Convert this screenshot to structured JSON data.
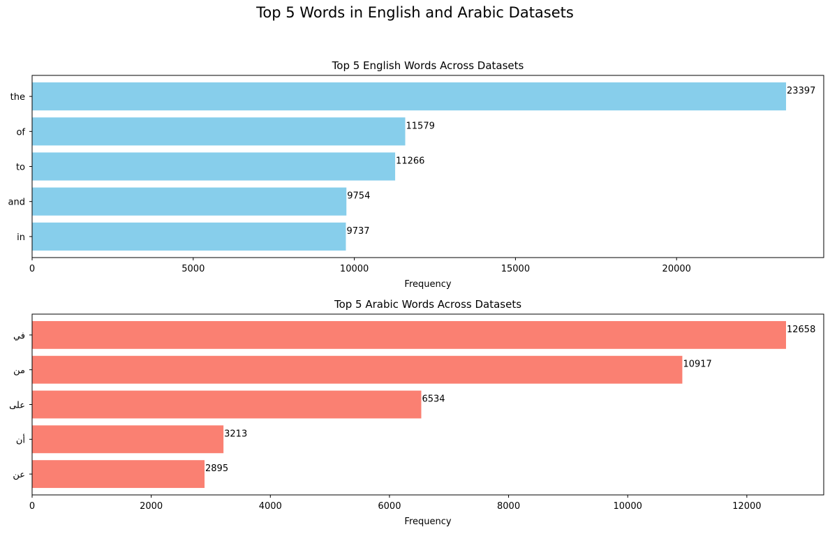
{
  "figure": {
    "suptitle": "Top 5 Words in English and Arabic Datasets"
  },
  "chart_data": [
    {
      "type": "bar",
      "orientation": "horizontal",
      "title": "Top 5 English Words Across Datasets",
      "xlabel": "Frequency",
      "ylabel": "",
      "categories": [
        "the",
        "of",
        "to",
        "and",
        "in"
      ],
      "values": [
        23397,
        11579,
        11266,
        9754,
        9737
      ],
      "data_labels": [
        "23397",
        "11579",
        "11266",
        "9754",
        "9737"
      ],
      "xlim": [
        0,
        24566
      ],
      "xticks": [
        0,
        5000,
        10000,
        15000,
        20000
      ],
      "xtick_labels": [
        "0",
        "5000",
        "10000",
        "15000",
        "20000"
      ],
      "color": "#87CEEB",
      "grid": false,
      "legend": "none"
    },
    {
      "type": "bar",
      "orientation": "horizontal",
      "title": "Top 5 Arabic Words Across Datasets",
      "xlabel": "Frequency",
      "ylabel": "",
      "categories": [
        "في",
        "من",
        "على",
        "أن",
        "عن"
      ],
      "values": [
        12658,
        10917,
        6534,
        3213,
        2895
      ],
      "data_labels": [
        "12658",
        "10917",
        "6534",
        "3213",
        "2895"
      ],
      "xlim": [
        0,
        13291
      ],
      "xticks": [
        0,
        2000,
        4000,
        6000,
        8000,
        10000,
        12000
      ],
      "xtick_labels": [
        "0",
        "2000",
        "4000",
        "6000",
        "8000",
        "10000",
        "12000"
      ],
      "color": "#FA8072",
      "grid": false,
      "legend": "none"
    }
  ]
}
